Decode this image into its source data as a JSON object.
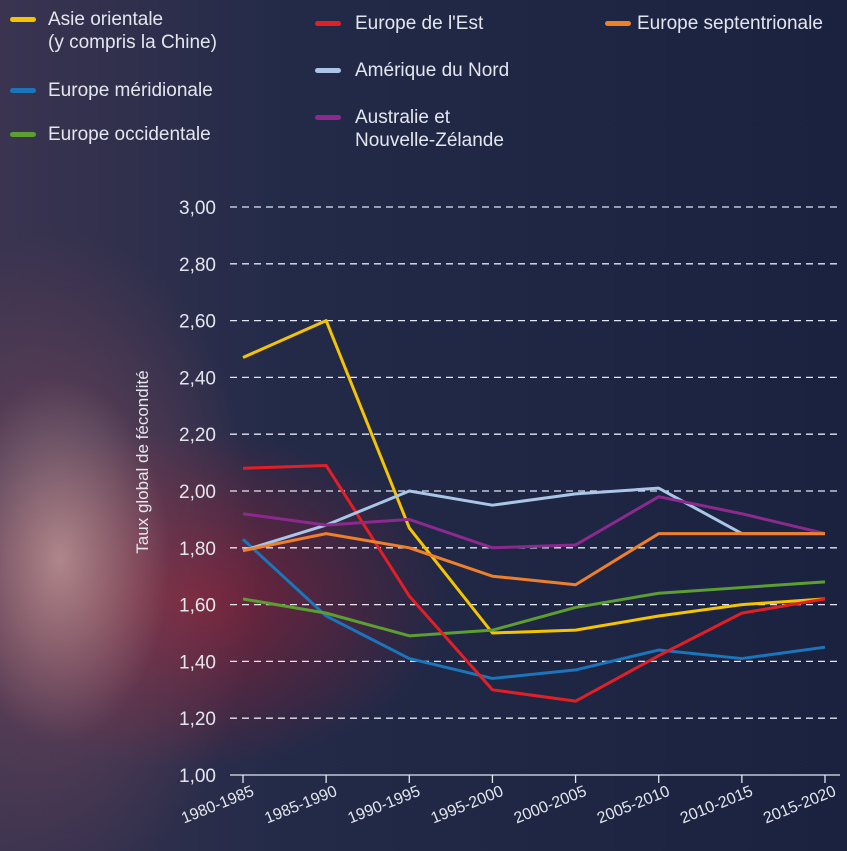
{
  "chart_data": {
    "type": "line",
    "y_label": "Taux global de fécondité",
    "categories": [
      "1980-1985",
      "1985-1990",
      "1990-1995",
      "1995-2000",
      "2000-2005",
      "2005-2010",
      "2010-2015",
      "2015-2020"
    ],
    "ylim": [
      1,
      3
    ],
    "yticks": [
      {
        "value": 1,
        "label": "1,00"
      },
      {
        "value": 1.2,
        "label": "1,20"
      },
      {
        "value": 1.4,
        "label": "1,40"
      },
      {
        "value": 1.6,
        "label": "1,60"
      },
      {
        "value": 1.8,
        "label": "1,80"
      },
      {
        "value": 2,
        "label": "2,00"
      },
      {
        "value": 2.2,
        "label": "2,20"
      },
      {
        "value": 2.4,
        "label": "2,40"
      },
      {
        "value": 2.6,
        "label": "2,60"
      },
      {
        "value": 2.8,
        "label": "2,80"
      },
      {
        "value": 3,
        "label": "3,00"
      }
    ],
    "grid": true,
    "series": [
      {
        "name": "Asie orientale\n(y compris la Chine)",
        "color": "#f5c400",
        "values": [
          2.47,
          2.6,
          1.87,
          1.5,
          1.51,
          1.56,
          1.6,
          1.62
        ]
      },
      {
        "name": "Europe méridionale",
        "color": "#1b75bb",
        "values": [
          1.83,
          1.56,
          1.41,
          1.34,
          1.37,
          1.44,
          1.41,
          1.45
        ]
      },
      {
        "name": "Europe occidentale",
        "color": "#5c9e31",
        "values": [
          1.62,
          1.57,
          1.49,
          1.51,
          1.59,
          1.64,
          1.66,
          1.68
        ]
      },
      {
        "name": "Europe de l'Est",
        "color": "#e31f26",
        "values": [
          2.08,
          2.09,
          1.63,
          1.3,
          1.26,
          1.42,
          1.57,
          1.62
        ]
      },
      {
        "name": "Amérique du Nord",
        "color": "#a9c6e8",
        "values": [
          1.79,
          1.88,
          2.0,
          1.95,
          1.99,
          2.01,
          1.85,
          1.85
        ]
      },
      {
        "name": "Australie et\nNouvelle-Zélande",
        "color": "#8b2a8c",
        "values": [
          1.92,
          1.88,
          1.9,
          1.8,
          1.81,
          1.98,
          1.92,
          1.85
        ]
      },
      {
        "name": "Europe septentrionale",
        "color": "#f07f2a",
        "values": [
          1.79,
          1.85,
          1.8,
          1.7,
          1.67,
          1.85,
          1.85,
          1.85
        ]
      }
    ]
  }
}
